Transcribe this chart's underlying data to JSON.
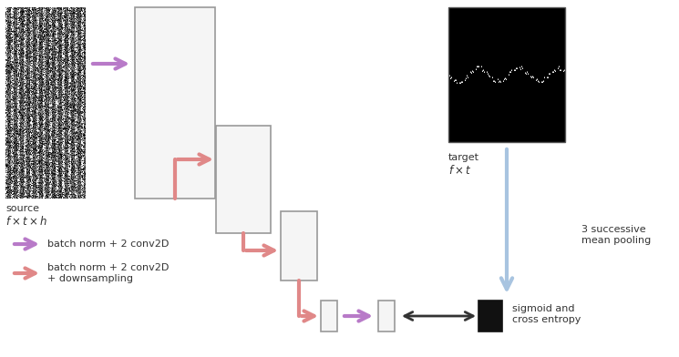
{
  "bg_color": "#ffffff",
  "purple_color": "#b87ac8",
  "red_color": "#e08888",
  "blue_color": "#a8c4e0",
  "dark_color": "#333333",
  "legend_purple": "batch norm + 2 conv2D",
  "legend_red": "batch norm + 2 conv2D\n+ downsampling",
  "bottom_label": "sigmoid and\ncross entropy",
  "pooling_label": "3 successive\nmean pooling",
  "fig_width": 7.45,
  "fig_height": 3.92
}
